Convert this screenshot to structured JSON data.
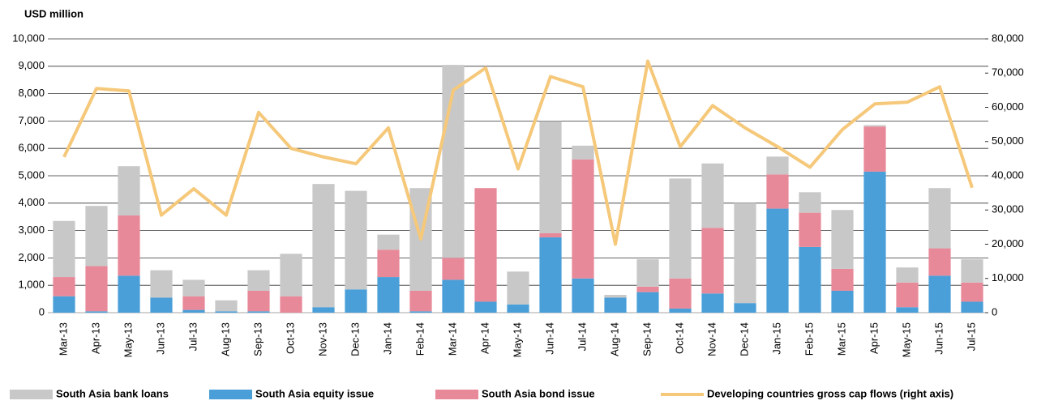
{
  "chart_data": {
    "type": "bar",
    "stacked": true,
    "y_label": "USD million",
    "categories": [
      "Mar-13",
      "Apr-13",
      "May-13",
      "Jun-13",
      "Jul-13",
      "Aug-13",
      "Sep-13",
      "Oct-13",
      "Nov-13",
      "Dec-13",
      "Jan-14",
      "Feb-14",
      "Mar-14",
      "Apr-14",
      "May-14",
      "Jun-14",
      "Jul-14",
      "Aug-14",
      "Sep-14",
      "Oct-14",
      "Nov-14",
      "Dec-14",
      "Jan-15",
      "Feb-15",
      "Mar-15",
      "Apr-15",
      "May-15",
      "Jun-15",
      "Jul-15"
    ],
    "series": [
      {
        "name": "South Asia equity issue",
        "color": "#4a9fd8",
        "values": [
          600,
          50,
          1350,
          550,
          100,
          50,
          50,
          0,
          200,
          850,
          1300,
          50,
          1200,
          400,
          300,
          2750,
          1250,
          550,
          750,
          150,
          700,
          350,
          3800,
          2400,
          800,
          5150,
          200,
          1350,
          400
        ]
      },
      {
        "name": "South Asia bond issue",
        "color": "#e8899a",
        "values": [
          700,
          1650,
          2200,
          0,
          500,
          0,
          750,
          600,
          0,
          0,
          1000,
          750,
          800,
          4150,
          0,
          150,
          4350,
          0,
          200,
          1100,
          2400,
          0,
          1250,
          1250,
          800,
          1650,
          900,
          1000,
          700
        ]
      },
      {
        "name": "South Asia bank loans",
        "color": "#c8c8c8",
        "values": [
          2050,
          2200,
          1800,
          1000,
          600,
          400,
          750,
          1550,
          4500,
          3600,
          550,
          3750,
          7050,
          0,
          1200,
          4100,
          500,
          100,
          1000,
          3650,
          2350,
          3650,
          650,
          750,
          2150,
          50,
          550,
          2200,
          850
        ]
      },
      {
        "name": "Developing countries gross cap flows (right axis)",
        "color": "#f5c87a",
        "type": "line",
        "axis": "y2",
        "values": [
          45500,
          65500,
          64800,
          28500,
          36200,
          28500,
          58500,
          48000,
          45500,
          43500,
          54000,
          21500,
          65000,
          71500,
          42000,
          69000,
          66000,
          20000,
          73500,
          48500,
          60500,
          54000,
          48500,
          42500,
          53500,
          61000,
          61500,
          66000,
          36500
        ]
      }
    ],
    "ylim": [
      0,
      10000
    ],
    "yticks": [
      0,
      {
        "value": 1000,
        "label": "1,000"
      },
      {
        "value": 2000,
        "label": "2,000"
      },
      {
        "value": 3000,
        "label": "3,000"
      },
      {
        "value": 4000,
        "label": "4,000"
      },
      {
        "value": 5000,
        "label": "5,000"
      },
      {
        "value": 6000,
        "label": "6,000"
      },
      {
        "value": 7000,
        "label": "7,000"
      },
      {
        "value": 8000,
        "label": "8,000"
      },
      {
        "value": 9000,
        "label": "9,000"
      },
      {
        "value": 10000,
        "label": "10,000"
      }
    ],
    "y2lim": [
      0,
      80000
    ],
    "y2ticks": [
      0,
      {
        "value": 10000,
        "label": "10,000"
      },
      {
        "value": 20000,
        "label": "20,000"
      },
      {
        "value": 30000,
        "label": "30,000"
      },
      {
        "value": 40000,
        "label": "40,000"
      },
      {
        "value": 50000,
        "label": "50,000"
      },
      {
        "value": 60000,
        "label": "60,000"
      },
      {
        "value": 70000,
        "label": "70,000"
      },
      {
        "value": 80000,
        "label": "80,000"
      }
    ],
    "grid": true,
    "legend": "bottom"
  }
}
